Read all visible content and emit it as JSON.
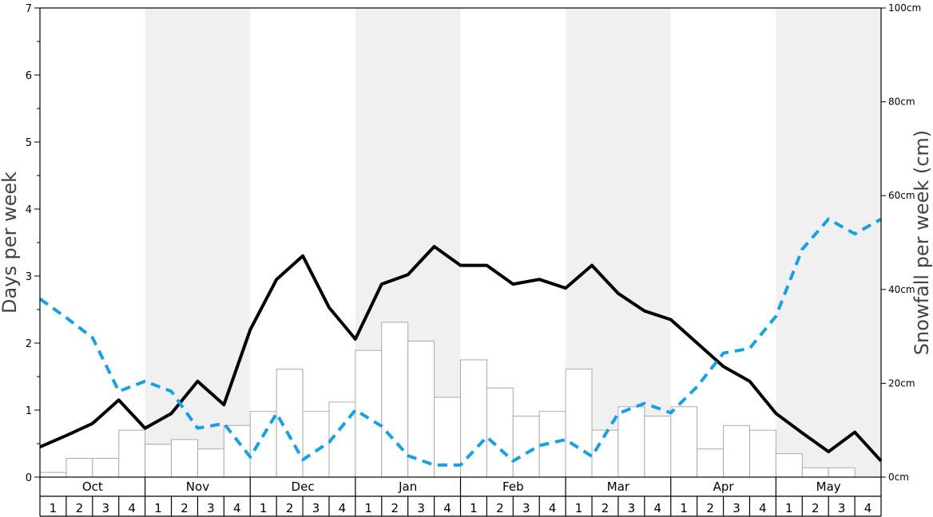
{
  "chart_data": {
    "type": "bar",
    "ylabel_left": "Days per week",
    "ylabel_right": "Snowfall per week (cm)",
    "ylim_left": [
      0,
      7
    ],
    "ylim_right": [
      0,
      100
    ],
    "left_ticks": [
      "0",
      "1",
      "2",
      "3",
      "4",
      "5",
      "6",
      "7"
    ],
    "right_ticks": [
      "0cm",
      "20cm",
      "40cm",
      "60cm",
      "80cm",
      "100cm"
    ],
    "months": [
      "Oct",
      "Nov",
      "Dec",
      "Jan",
      "Feb",
      "Mar",
      "Apr",
      "May"
    ],
    "week_labels": [
      "1",
      "2",
      "3",
      "4"
    ],
    "colors": {
      "bars_fill": "#ffffff",
      "bars_stroke": "#aaaaaa",
      "solid_line": "#000000",
      "dashed_line": "#1a9fe0",
      "band_shade": "#f0f0f0"
    },
    "series": [
      {
        "kind": "bars",
        "axis": "right",
        "values": [
          1,
          4,
          4,
          10,
          7,
          8,
          6,
          11,
          14,
          23,
          14,
          16,
          27,
          33,
          29,
          17,
          25,
          19,
          13,
          14,
          23,
          10,
          15,
          13,
          15,
          6,
          11,
          10,
          5,
          2,
          2,
          0
        ]
      },
      {
        "kind": "line",
        "style": "solid",
        "axis": "left",
        "values": [
          0.45,
          0.62,
          0.8,
          1.15,
          0.73,
          0.95,
          1.43,
          1.08,
          2.2,
          2.95,
          3.3,
          2.53,
          2.06,
          2.88,
          3.02,
          3.44,
          3.16,
          3.16,
          2.88,
          2.95,
          2.82,
          3.16,
          2.74,
          2.48,
          2.35,
          2.0,
          1.65,
          1.43,
          0.95,
          0.66,
          0.38,
          0.67,
          0.24
        ]
      },
      {
        "kind": "line",
        "style": "dashed",
        "axis": "left",
        "values": [
          2.66,
          2.38,
          2.08,
          1.28,
          1.43,
          1.28,
          0.73,
          0.8,
          0.3,
          0.95,
          0.26,
          0.52,
          1.0,
          0.76,
          0.32,
          0.18,
          0.18,
          0.6,
          0.24,
          0.47,
          0.56,
          0.31,
          0.95,
          1.1,
          0.96,
          1.35,
          1.85,
          1.92,
          2.4,
          3.4,
          3.85,
          3.63,
          3.85
        ]
      }
    ]
  }
}
